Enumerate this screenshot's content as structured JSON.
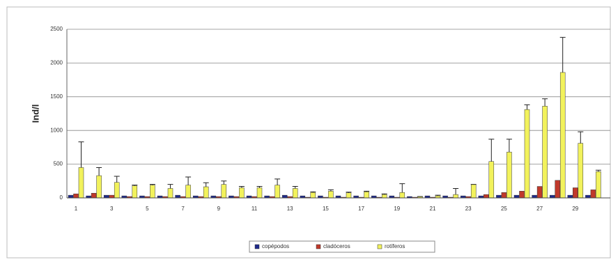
{
  "chart_data": {
    "type": "bar",
    "y_label": "Ind/l",
    "categories": [
      "1",
      null,
      "3",
      null,
      "5",
      null,
      "7",
      null,
      "9",
      null,
      "11",
      null,
      "13",
      null,
      "15",
      null,
      "17",
      null,
      "19",
      null,
      "21",
      null,
      "23",
      null,
      "25",
      null,
      "27",
      null,
      "29",
      null
    ],
    "series": [
      {
        "name": "copépodos",
        "color": "#1f2a8c",
        "values": [
          40,
          30,
          40,
          30,
          30,
          30,
          40,
          30,
          30,
          30,
          30,
          30,
          40,
          30,
          30,
          30,
          30,
          30,
          30,
          20,
          30,
          30,
          30,
          30,
          40,
          40,
          40,
          40,
          40,
          40
        ]
      },
      {
        "name": "cladóceros",
        "color": "#c0392b",
        "values": [
          60,
          70,
          40,
          20,
          20,
          20,
          20,
          20,
          20,
          20,
          20,
          20,
          20,
          10,
          10,
          10,
          10,
          10,
          10,
          10,
          10,
          10,
          20,
          50,
          80,
          100,
          170,
          260,
          150,
          120
        ]
      },
      {
        "name": "rotíferos",
        "color": "#f2f25c",
        "values": [
          450,
          330,
          230,
          180,
          190,
          140,
          190,
          165,
          200,
          150,
          150,
          190,
          140,
          80,
          100,
          75,
          90,
          50,
          80,
          20,
          30,
          50,
          200,
          540,
          680,
          1310,
          1360,
          1860,
          810,
          390
        ],
        "errors": [
          380,
          120,
          90,
          10,
          10,
          60,
          120,
          60,
          50,
          20,
          20,
          90,
          30,
          10,
          20,
          10,
          10,
          10,
          130,
          0,
          10,
          90,
          0,
          330,
          190,
          70,
          110,
          520,
          170,
          20
        ]
      }
    ],
    "ylim": [
      0,
      2500
    ],
    "yticks": [
      0,
      500,
      1000,
      1500,
      2000,
      2500
    ],
    "grid": true
  }
}
